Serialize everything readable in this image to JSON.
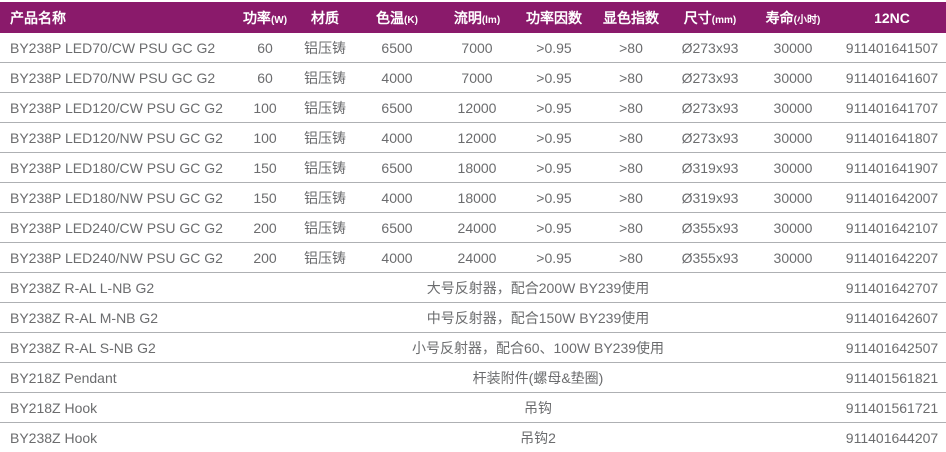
{
  "colors": {
    "header_bg": "#8a1a6b",
    "header_text": "#ffffff",
    "body_text": "#6b6c6e",
    "row_separator": "#aeb0b3"
  },
  "table": {
    "column_keys": [
      "product-name",
      "power",
      "material",
      "cct",
      "lumen",
      "power-factor",
      "cri",
      "size",
      "lifetime",
      "12nc"
    ],
    "columns": [
      {
        "label": "产品名称",
        "unit": ""
      },
      {
        "label": "功率",
        "unit": "(W)"
      },
      {
        "label": "材质",
        "unit": ""
      },
      {
        "label": "色温",
        "unit": "(K)"
      },
      {
        "label": "流明",
        "unit": "(lm)"
      },
      {
        "label": "功率因数",
        "unit": ""
      },
      {
        "label": "显色指数",
        "unit": ""
      },
      {
        "label": "尺寸",
        "unit": "(mm)"
      },
      {
        "label": "寿命",
        "unit": "(小时)"
      },
      {
        "label": "12NC",
        "unit": ""
      }
    ],
    "product_rows": [
      {
        "cells": [
          "BY238P LED70/CW PSU GC G2",
          "60",
          "铝压铸",
          "6500",
          "7000",
          ">0.95",
          ">80",
          "Ø273x93",
          "30000",
          "911401641507"
        ]
      },
      {
        "cells": [
          "BY238P LED70/NW PSU GC G2",
          "60",
          "铝压铸",
          "4000",
          "7000",
          ">0.95",
          ">80",
          "Ø273x93",
          "30000",
          "911401641607"
        ]
      },
      {
        "cells": [
          "BY238P LED120/CW PSU GC G2",
          "100",
          "铝压铸",
          "6500",
          "12000",
          ">0.95",
          ">80",
          "Ø273x93",
          "30000",
          "911401641707"
        ]
      },
      {
        "cells": [
          "BY238P LED120/NW PSU GC G2",
          "100",
          "铝压铸",
          "4000",
          "12000",
          ">0.95",
          ">80",
          "Ø273x93",
          "30000",
          "911401641807"
        ]
      },
      {
        "cells": [
          "BY238P LED180/CW PSU GC G2",
          "150",
          "铝压铸",
          "6500",
          "18000",
          ">0.95",
          ">80",
          "Ø319x93",
          "30000",
          "911401641907"
        ]
      },
      {
        "cells": [
          "BY238P LED180/NW PSU GC G2",
          "150",
          "铝压铸",
          "4000",
          "18000",
          ">0.95",
          ">80",
          "Ø319x93",
          "30000",
          "911401642007"
        ]
      },
      {
        "cells": [
          "BY238P LED240/CW PSU GC G2",
          "200",
          "铝压铸",
          "6500",
          "24000",
          ">0.95",
          ">80",
          "Ø355x93",
          "30000",
          "911401642107"
        ]
      },
      {
        "cells": [
          "BY238P LED240/NW PSU GC G2",
          "200",
          "铝压铸",
          "4000",
          "24000",
          ">0.95",
          ">80",
          "Ø355x93",
          "30000",
          "911401642207"
        ]
      }
    ],
    "merged_rows": [
      {
        "name": "BY238Z R-AL L-NB G2",
        "description": "大号反射器，配合200W BY239使用",
        "nc12": "911401642707"
      },
      {
        "name": "BY238Z R-AL M-NB G2",
        "description": "中号反射器，配合150W BY239使用",
        "nc12": "911401642607"
      },
      {
        "name": "BY238Z R-AL S-NB G2",
        "description": "小号反射器，配合60、100W BY239使用",
        "nc12": "911401642507"
      },
      {
        "name": "BY218Z Pendant",
        "description": "杆装附件(螺母&垫圈)",
        "nc12": "911401561821"
      },
      {
        "name": "BY218Z Hook",
        "description": "吊钩",
        "nc12": "911401561721"
      },
      {
        "name": "BY238Z Hook",
        "description": "吊钩2",
        "nc12": "911401644207"
      }
    ]
  }
}
